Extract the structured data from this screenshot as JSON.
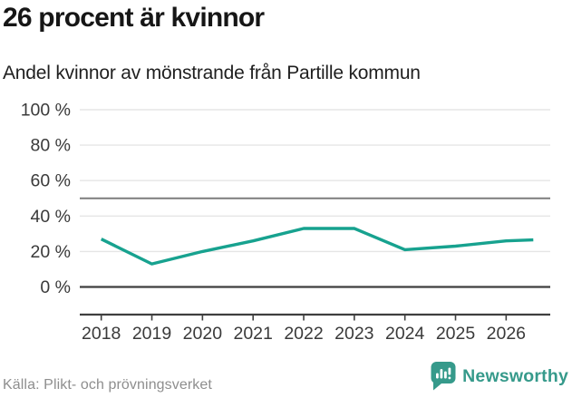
{
  "header": {
    "title": "26 procent är kvinnor",
    "subtitle": "Andel kvinnor av mönstrande från Partille kommun"
  },
  "chart_data": {
    "type": "line",
    "title": "26 procent är kvinnor",
    "subtitle": "Andel kvinnor av mönstrande från Partille kommun",
    "categories": [
      "2018",
      "2019",
      "2020",
      "2021",
      "2022",
      "2023",
      "2024",
      "2025",
      "2026"
    ],
    "values": [
      27,
      13,
      20,
      26,
      33,
      33,
      21,
      23,
      26
    ],
    "unit": "%",
    "ylim": [
      0,
      100
    ],
    "yticks": [
      0,
      20,
      40,
      60,
      80,
      100
    ],
    "ytick_suffix": " %",
    "reference_line_y": 50,
    "grid": "horizontal",
    "legend": "none",
    "colors": {
      "line": "#17a28f",
      "grid": "#e5e5e5",
      "reference": "#7d7d7d",
      "axis": "#3f3f3f",
      "tick_label": "#3a3a3a"
    }
  },
  "footer": {
    "source": "Källa: Plikt- och prövningsverket",
    "brand": "Newsworthy",
    "brand_color": "#369a8b"
  }
}
